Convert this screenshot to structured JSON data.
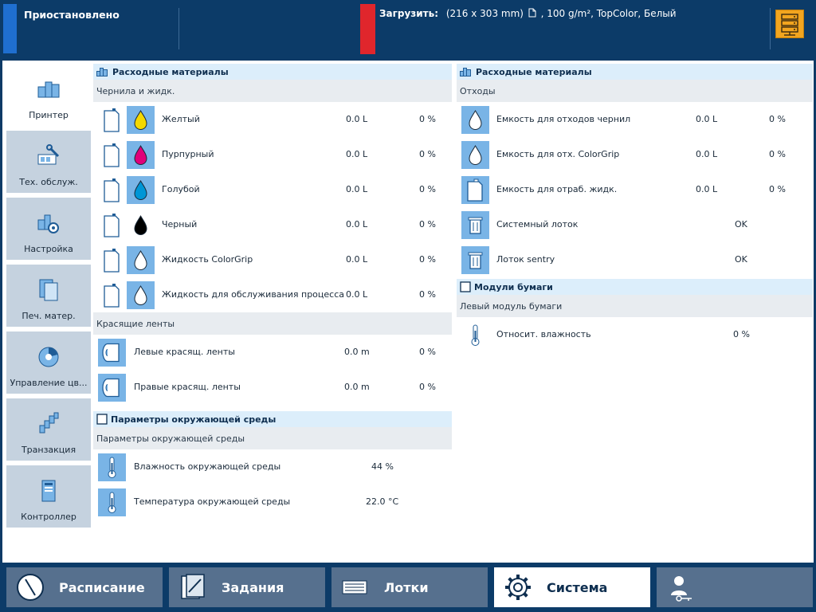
{
  "topbar": {
    "status": "Приостановлено",
    "load_label": "Загрузить:",
    "load_size": "(216 x 303 mm)",
    "load_media": ", 100 g/m², TopColor, Белый"
  },
  "sidenav": {
    "items": [
      {
        "label": "Принтер",
        "icon": "printer-icon",
        "active": true
      },
      {
        "label": "Тех. обслуж.",
        "icon": "maintenance-icon",
        "active": false
      },
      {
        "label": "Настройка",
        "icon": "configuration-icon",
        "active": false
      },
      {
        "label": "Печ. матер.",
        "icon": "print-media-icon",
        "active": false
      },
      {
        "label": "Управление цв...",
        "icon": "color-management-icon",
        "active": false
      },
      {
        "label": "Транзакция",
        "icon": "transaction-icon",
        "active": false
      },
      {
        "label": "Контроллер",
        "icon": "controller-icon",
        "active": false
      }
    ]
  },
  "left_panel": {
    "consumables_title": "Расходные материалы",
    "inks_subtitle": "Чернила и жидк.",
    "inks": [
      {
        "name": "Желтый",
        "volume": "0.0 L",
        "percent": "0 %",
        "color": "#f4d800"
      },
      {
        "name": "Пурпурный",
        "volume": "0.0 L",
        "percent": "0 %",
        "color": "#e0007a"
      },
      {
        "name": "Голубой",
        "volume": "0.0 L",
        "percent": "0 %",
        "color": "#0096d6"
      },
      {
        "name": "Черный",
        "volume": "0.0 L",
        "percent": "0 %",
        "color": "#000000"
      },
      {
        "name": "Жидкость ColorGrip",
        "volume": "0.0 L",
        "percent": "0 %",
        "color": "#ffffff"
      },
      {
        "name": "Жидкость для обслуживания процесса",
        "volume": "0.0 L",
        "percent": "0 %",
        "color": "#ffffff"
      }
    ],
    "ribbons_subtitle": "Красящие ленты",
    "ribbons": [
      {
        "name": "Левые красящ. ленты",
        "length": "0.0 m",
        "percent": "0 %"
      },
      {
        "name": "Правые красящ. ленты",
        "length": "0.0 m",
        "percent": "0 %"
      }
    ],
    "env_title": "Параметры окружающей среды",
    "env_subtitle": "Параметры окружающей среды",
    "env": [
      {
        "name": "Влажность окружающей среды",
        "value": "44 %"
      },
      {
        "name": "Температура окружающей среды",
        "value": "22.0 °C"
      }
    ]
  },
  "right_panel": {
    "consumables_title": "Расходные материалы",
    "waste_subtitle": "Отходы",
    "waste": [
      {
        "name": "Емкость для отходов чернил",
        "volume": "0.0 L",
        "percent": "0 %",
        "icon": "drop-icon"
      },
      {
        "name": "Емкость для отх. ColorGrip",
        "volume": "0.0 L",
        "percent": "0 %",
        "icon": "drop-icon"
      },
      {
        "name": "Емкость для отраб. жидк.",
        "volume": "0.0 L",
        "percent": "0 %",
        "icon": "canister-icon"
      }
    ],
    "trays": [
      {
        "name": "Системный лоток",
        "status": "OK"
      },
      {
        "name": "Лоток sentry",
        "status": "OK"
      }
    ],
    "paper_modules_title": "Модули бумаги",
    "left_module_subtitle": "Левый модуль бумаги",
    "humidity_label": "Относит. влажность",
    "humidity_value": "0 %"
  },
  "bottombar": {
    "tabs": [
      {
        "label": "Расписание",
        "icon": "clock-icon",
        "active": false
      },
      {
        "label": "Задания",
        "icon": "jobs-icon",
        "active": false
      },
      {
        "label": "Лотки",
        "icon": "trays-icon",
        "active": false
      },
      {
        "label": "Система",
        "icon": "gear-icon",
        "active": true
      },
      {
        "label": "",
        "icon": "user-key-icon",
        "active": false
      }
    ]
  }
}
